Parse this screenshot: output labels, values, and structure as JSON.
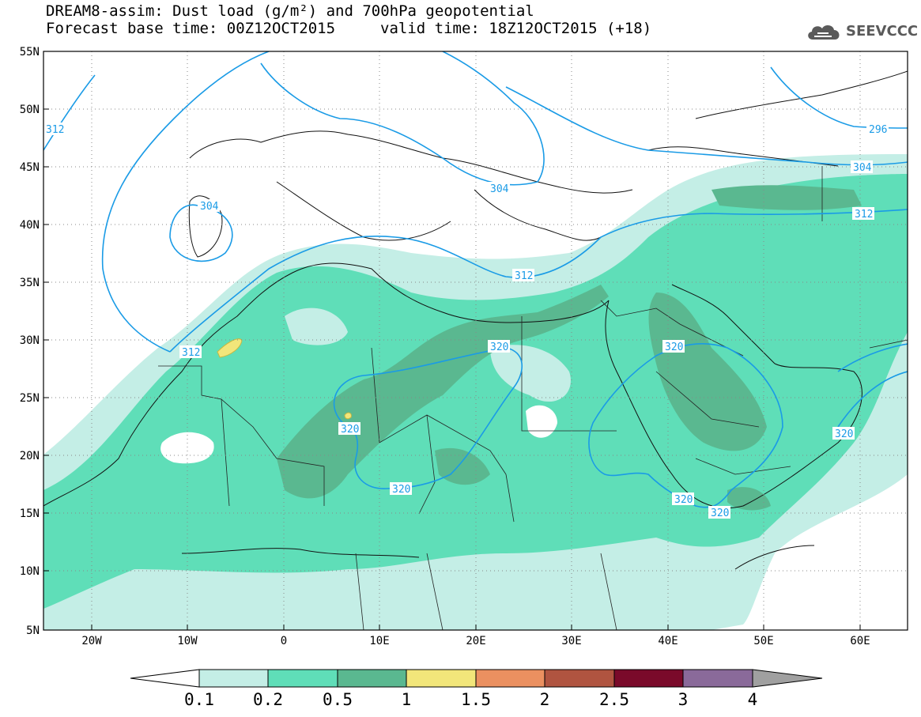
{
  "header": {
    "title_line1": "DREAM8-assim: Dust load (g/m²) and 700hPa geopotential",
    "title_line2": "Forecast base time: 00Z12OCT2015",
    "valid_time": "valid time: 18Z12OCT2015 (+18)",
    "logo_text": "SEEVCCC",
    "logo_icon": "cloud-icon"
  },
  "axes": {
    "lat_labels": [
      "55N",
      "50N",
      "45N",
      "40N",
      "35N",
      "30N",
      "25N",
      "20N",
      "15N",
      "10N",
      "5N"
    ],
    "lon_labels": [
      "20W",
      "10W",
      "0",
      "10E",
      "20E",
      "30E",
      "40E",
      "50E",
      "60E"
    ]
  },
  "contour_labels": {
    "geopotential": [
      "312",
      "304",
      "312",
      "312",
      "320",
      "320",
      "320",
      "320",
      "320",
      "320",
      "320",
      "296",
      "304",
      "312"
    ]
  },
  "legend": {
    "ticks": [
      "0.1",
      "0.2",
      "0.5",
      "1",
      "1.5",
      "2",
      "2.5",
      "3",
      "4"
    ],
    "colors": [
      "#ffffff",
      "#c4eee6",
      "#5fdeb8",
      "#5ab890",
      "#f2e67a",
      "#eb9060",
      "#b05440",
      "#7a0a2a",
      "#8a6a9a",
      "#a0a0a0"
    ]
  }
}
